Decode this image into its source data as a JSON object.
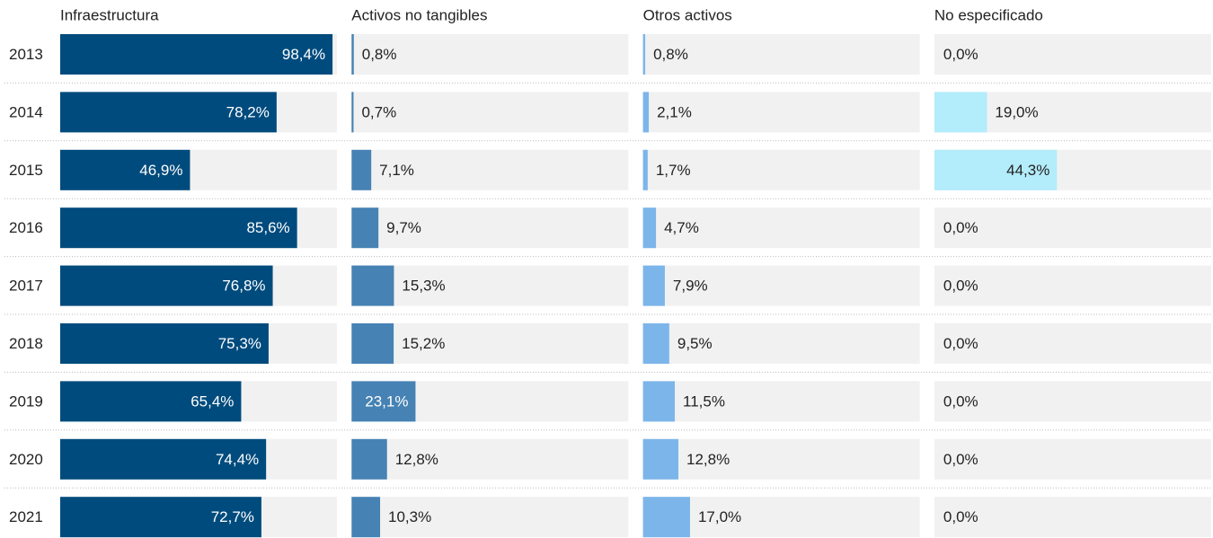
{
  "chart_data": {
    "type": "bar",
    "categories": [
      "2013",
      "2014",
      "2015",
      "2016",
      "2017",
      "2018",
      "2019",
      "2020",
      "2021"
    ],
    "xlim": [
      0,
      100
    ],
    "series": [
      {
        "name": "Infraestructura",
        "color": "#004b7d",
        "values": [
          98.4,
          78.2,
          46.9,
          85.6,
          76.8,
          75.3,
          65.4,
          74.4,
          72.7
        ],
        "value_labels": [
          "98,4%",
          "78,2%",
          "46,9%",
          "85,6%",
          "76,8%",
          "75,3%",
          "65,4%",
          "74,4%",
          "72,7%"
        ]
      },
      {
        "name": "Activos no tangibles",
        "color": "#4682b4",
        "values": [
          0.8,
          0.7,
          7.1,
          9.7,
          15.3,
          15.2,
          23.1,
          12.8,
          10.3
        ],
        "value_labels": [
          "0,8%",
          "0,7%",
          "7,1%",
          "9,7%",
          "15,3%",
          "15,2%",
          "23,1%",
          "12,8%",
          "10,3%"
        ]
      },
      {
        "name": "Otros activos",
        "color": "#7cb5ea",
        "values": [
          0.8,
          2.1,
          1.7,
          4.7,
          7.9,
          9.5,
          11.5,
          12.8,
          17.0
        ],
        "value_labels": [
          "0,8%",
          "2,1%",
          "1,7%",
          "4,7%",
          "7,9%",
          "9,5%",
          "11,5%",
          "12,8%",
          "17,0%"
        ]
      },
      {
        "name": "No especificado",
        "color": "#b3ecfa",
        "values": [
          0.0,
          19.0,
          44.3,
          0.0,
          0.0,
          0.0,
          0.0,
          0.0,
          0.0
        ],
        "value_labels": [
          "0,0%",
          "19,0%",
          "44,3%",
          "0,0%",
          "0,0%",
          "0,0%",
          "0,0%",
          "0,0%",
          "0,0%"
        ]
      }
    ]
  }
}
